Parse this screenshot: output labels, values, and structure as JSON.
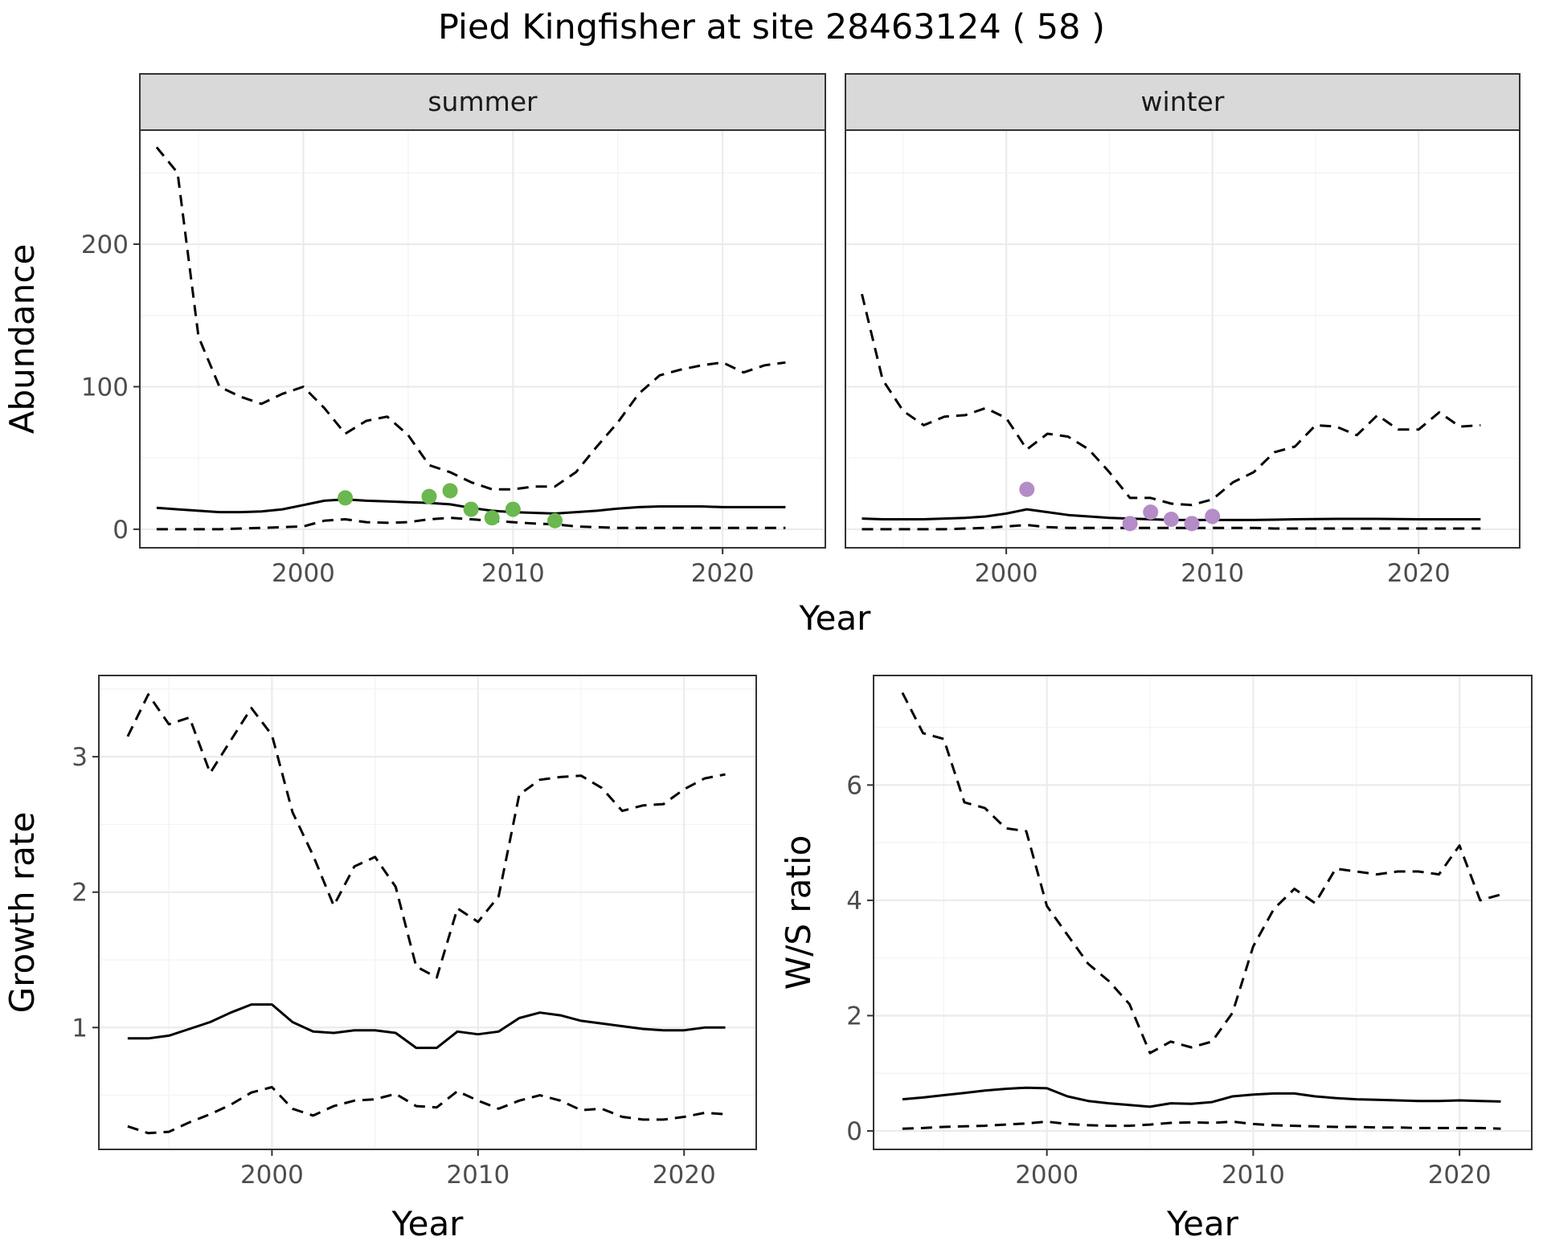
{
  "title": "Pied Kingfisher at site 28463124 ( 58 )",
  "colors": {
    "summer_points": "#6ab84f",
    "winter_points": "#b48cc8",
    "lines": "#000000"
  },
  "chart_data": [
    {
      "type": "line",
      "panel": "summer",
      "facet_label": "summer",
      "xlabel": "Year",
      "ylabel": "Abundance",
      "x_ticks": [
        2000,
        2010,
        2020
      ],
      "y_ticks": [
        0,
        100,
        200
      ],
      "xlim": [
        1992.2,
        2024.9
      ],
      "ylim": [
        -13,
        280
      ],
      "grid": true,
      "series": [
        {
          "role": "mean",
          "style": "solid",
          "x": [
            1993,
            1994,
            1995,
            1996,
            1997,
            1998,
            1999,
            2000,
            2001,
            2002,
            2003,
            2004,
            2005,
            2006,
            2007,
            2008,
            2009,
            2010,
            2011,
            2012,
            2013,
            2014,
            2015,
            2016,
            2017,
            2018,
            2019,
            2020,
            2021,
            2022,
            2023
          ],
          "y": [
            15,
            14,
            13,
            12,
            12,
            12.5,
            14,
            17,
            20,
            21,
            20,
            19.5,
            19,
            18.5,
            17.5,
            15,
            13,
            12,
            11.5,
            11,
            12,
            13,
            14.5,
            15.5,
            16,
            16,
            16,
            15.5,
            15.5,
            15.5,
            15.5
          ]
        },
        {
          "role": "upper",
          "style": "dashed",
          "x": [
            1993,
            1994,
            1995,
            1996,
            1997,
            1998,
            1999,
            2000,
            2001,
            2002,
            2003,
            2004,
            2005,
            2006,
            2007,
            2008,
            2009,
            2010,
            2011,
            2012,
            2013,
            2014,
            2015,
            2016,
            2017,
            2018,
            2019,
            2020,
            2021,
            2022,
            2023
          ],
          "y": [
            268,
            250,
            135,
            100,
            93,
            88,
            95,
            100,
            85,
            67,
            76,
            79,
            66,
            45,
            40,
            33,
            28,
            28,
            30,
            30,
            40,
            58,
            75,
            95,
            108,
            112,
            115,
            117,
            110,
            115,
            117
          ]
        },
        {
          "role": "lower",
          "style": "dashed",
          "x": [
            1993,
            1994,
            1995,
            1996,
            1997,
            1998,
            1999,
            2000,
            2001,
            2002,
            2003,
            2004,
            2005,
            2006,
            2007,
            2008,
            2009,
            2010,
            2011,
            2012,
            2013,
            2014,
            2015,
            2016,
            2017,
            2018,
            2019,
            2020,
            2021,
            2022,
            2023
          ],
          "y": [
            0,
            0,
            0,
            0,
            0.5,
            1,
            1.5,
            2,
            6,
            7,
            5,
            4.5,
            5,
            7,
            8,
            7,
            6,
            5,
            4,
            3.5,
            2,
            1.5,
            1,
            1,
            1,
            1,
            1,
            1,
            1,
            1,
            1
          ]
        }
      ],
      "points": {
        "x": [
          2002,
          2006,
          2007,
          2008,
          2009,
          2010,
          2012
        ],
        "y": [
          22,
          23,
          27,
          14,
          8,
          14,
          6
        ]
      }
    },
    {
      "type": "line",
      "panel": "winter",
      "facet_label": "winter",
      "xlabel": "Year",
      "ylabel": "Abundance",
      "x_ticks": [
        2000,
        2010,
        2020
      ],
      "y_ticks": [
        0,
        100,
        200
      ],
      "xlim": [
        1992.2,
        2024.9
      ],
      "ylim": [
        -13,
        280
      ],
      "grid": true,
      "series": [
        {
          "role": "mean",
          "style": "solid",
          "x": [
            1993,
            1994,
            1995,
            1996,
            1997,
            1998,
            1999,
            2000,
            2001,
            2002,
            2003,
            2004,
            2005,
            2006,
            2007,
            2008,
            2009,
            2010,
            2011,
            2012,
            2013,
            2014,
            2015,
            2016,
            2017,
            2018,
            2019,
            2020,
            2021,
            2022,
            2023
          ],
          "y": [
            7.5,
            7,
            7,
            7,
            7.5,
            8,
            9,
            11,
            14,
            12,
            10,
            9,
            8,
            7.5,
            7,
            6.5,
            6.5,
            6.5,
            6.5,
            6.5,
            6.7,
            7,
            7.2,
            7.3,
            7.3,
            7.3,
            7.2,
            7,
            7,
            7,
            7
          ]
        },
        {
          "role": "upper",
          "style": "dashed",
          "x": [
            1993,
            1994,
            1995,
            1996,
            1997,
            1998,
            1999,
            2000,
            2001,
            2002,
            2003,
            2004,
            2005,
            2006,
            2007,
            2008,
            2009,
            2010,
            2011,
            2012,
            2013,
            2014,
            2015,
            2016,
            2017,
            2018,
            2019,
            2020,
            2021,
            2022,
            2023
          ],
          "y": [
            165,
            105,
            83,
            73,
            79,
            80,
            85,
            78,
            56,
            67,
            65,
            56,
            40,
            22,
            22,
            18,
            17,
            21,
            33,
            40,
            54,
            58,
            73,
            72,
            66,
            80,
            70,
            70,
            82,
            72,
            73
          ]
        },
        {
          "role": "lower",
          "style": "dashed",
          "x": [
            1993,
            1994,
            1995,
            1996,
            1997,
            1998,
            1999,
            2000,
            2001,
            2002,
            2003,
            2004,
            2005,
            2006,
            2007,
            2008,
            2009,
            2010,
            2011,
            2012,
            2013,
            2014,
            2015,
            2016,
            2017,
            2018,
            2019,
            2020,
            2021,
            2022,
            2023
          ],
          "y": [
            0,
            0,
            0,
            0,
            0,
            0.5,
            1,
            2,
            3,
            1.5,
            1,
            1,
            1,
            1,
            1,
            1,
            1,
            1,
            1,
            1,
            0.5,
            0.5,
            0.5,
            0.5,
            0.5,
            0.5,
            0.5,
            0.5,
            0.5,
            0.5,
            0.5
          ]
        }
      ],
      "points": {
        "x": [
          2001,
          2006,
          2007,
          2008,
          2009,
          2010
        ],
        "y": [
          28,
          4,
          12,
          7,
          4,
          9
        ]
      }
    },
    {
      "type": "line",
      "panel": "growth",
      "xlabel": "Year",
      "ylabel": "Growth rate",
      "x_ticks": [
        2000,
        2010,
        2020
      ],
      "y_ticks": [
        1,
        2,
        3
      ],
      "xlim": [
        1991.6,
        2023.5
      ],
      "ylim": [
        0.1,
        3.6
      ],
      "grid": true,
      "series": [
        {
          "role": "mean",
          "style": "solid",
          "x": [
            1993,
            1994,
            1995,
            1996,
            1997,
            1998,
            1999,
            2000,
            2001,
            2002,
            2003,
            2004,
            2005,
            2006,
            2007,
            2008,
            2009,
            2010,
            2011,
            2012,
            2013,
            2014,
            2015,
            2016,
            2017,
            2018,
            2019,
            2020,
            2021,
            2022
          ],
          "y": [
            0.92,
            0.92,
            0.94,
            0.99,
            1.04,
            1.11,
            1.17,
            1.17,
            1.04,
            0.97,
            0.96,
            0.98,
            0.98,
            0.96,
            0.85,
            0.85,
            0.97,
            0.95,
            0.97,
            1.07,
            1.11,
            1.09,
            1.05,
            1.03,
            1.01,
            0.99,
            0.98,
            0.98,
            1.0,
            1.0
          ]
        },
        {
          "role": "upper",
          "style": "dashed",
          "x": [
            1993,
            1994,
            1995,
            1996,
            1997,
            1998,
            1999,
            2000,
            2001,
            2002,
            2003,
            2004,
            2005,
            2006,
            2007,
            2008,
            2009,
            2010,
            2011,
            2012,
            2013,
            2014,
            2015,
            2016,
            2017,
            2018,
            2019,
            2020,
            2021,
            2022
          ],
          "y": [
            3.15,
            3.46,
            3.24,
            3.29,
            2.88,
            3.12,
            3.36,
            3.16,
            2.59,
            2.27,
            1.9,
            2.19,
            2.26,
            2.04,
            1.45,
            1.37,
            1.88,
            1.78,
            1.97,
            2.72,
            2.83,
            2.85,
            2.86,
            2.77,
            2.6,
            2.64,
            2.65,
            2.76,
            2.84,
            2.87
          ]
        },
        {
          "role": "lower",
          "style": "dashed",
          "x": [
            1993,
            1994,
            1995,
            1996,
            1997,
            1998,
            1999,
            2000,
            2001,
            2002,
            2003,
            2004,
            2005,
            2006,
            2007,
            2008,
            2009,
            2010,
            2011,
            2012,
            2013,
            2014,
            2015,
            2016,
            2017,
            2018,
            2019,
            2020,
            2021,
            2022
          ],
          "y": [
            0.27,
            0.22,
            0.23,
            0.3,
            0.36,
            0.43,
            0.52,
            0.56,
            0.4,
            0.35,
            0.42,
            0.46,
            0.47,
            0.51,
            0.42,
            0.41,
            0.53,
            0.46,
            0.4,
            0.46,
            0.5,
            0.46,
            0.39,
            0.4,
            0.34,
            0.32,
            0.32,
            0.34,
            0.37,
            0.36
          ]
        }
      ]
    },
    {
      "type": "line",
      "panel": "ws_ratio",
      "xlabel": "Year",
      "ylabel": "W/S ratio",
      "x_ticks": [
        2000,
        2010,
        2020
      ],
      "y_ticks": [
        0,
        2,
        4,
        6
      ],
      "xlim": [
        1991.6,
        2023.5
      ],
      "ylim": [
        -0.32,
        7.9
      ],
      "grid": true,
      "series": [
        {
          "role": "mean",
          "style": "solid",
          "x": [
            1993,
            1994,
            1995,
            1996,
            1997,
            1998,
            1999,
            2000,
            2001,
            2002,
            2003,
            2004,
            2005,
            2006,
            2007,
            2008,
            2009,
            2010,
            2011,
            2012,
            2013,
            2014,
            2015,
            2016,
            2017,
            2018,
            2019,
            2020,
            2021,
            2022
          ],
          "y": [
            0.55,
            0.58,
            0.62,
            0.66,
            0.7,
            0.73,
            0.75,
            0.74,
            0.6,
            0.52,
            0.48,
            0.45,
            0.42,
            0.48,
            0.47,
            0.5,
            0.6,
            0.63,
            0.65,
            0.65,
            0.6,
            0.57,
            0.55,
            0.54,
            0.53,
            0.52,
            0.52,
            0.53,
            0.52,
            0.51
          ]
        },
        {
          "role": "upper",
          "style": "dashed",
          "x": [
            1993,
            1994,
            1995,
            1996,
            1997,
            1998,
            1999,
            2000,
            2001,
            2002,
            2003,
            2004,
            2005,
            2006,
            2007,
            2008,
            2009,
            2010,
            2011,
            2012,
            2013,
            2014,
            2015,
            2016,
            2017,
            2018,
            2019,
            2020,
            2021,
            2022
          ],
          "y": [
            7.6,
            6.9,
            6.8,
            5.7,
            5.6,
            5.25,
            5.2,
            3.9,
            3.4,
            2.9,
            2.6,
            2.2,
            1.35,
            1.55,
            1.45,
            1.55,
            2.05,
            3.2,
            3.85,
            4.2,
            3.95,
            4.55,
            4.5,
            4.45,
            4.5,
            4.5,
            4.45,
            4.95,
            4.0,
            4.1
          ]
        },
        {
          "role": "lower",
          "style": "dashed",
          "x": [
            1993,
            1994,
            1995,
            1996,
            1997,
            1998,
            1999,
            2000,
            2001,
            2002,
            2003,
            2004,
            2005,
            2006,
            2007,
            2008,
            2009,
            2010,
            2011,
            2012,
            2013,
            2014,
            2015,
            2016,
            2017,
            2018,
            2019,
            2020,
            2021,
            2022
          ],
          "y": [
            0.04,
            0.05,
            0.07,
            0.08,
            0.09,
            0.11,
            0.13,
            0.16,
            0.12,
            0.1,
            0.09,
            0.09,
            0.11,
            0.14,
            0.15,
            0.14,
            0.16,
            0.12,
            0.1,
            0.09,
            0.08,
            0.07,
            0.07,
            0.06,
            0.06,
            0.05,
            0.05,
            0.05,
            0.05,
            0.04
          ]
        }
      ]
    }
  ]
}
